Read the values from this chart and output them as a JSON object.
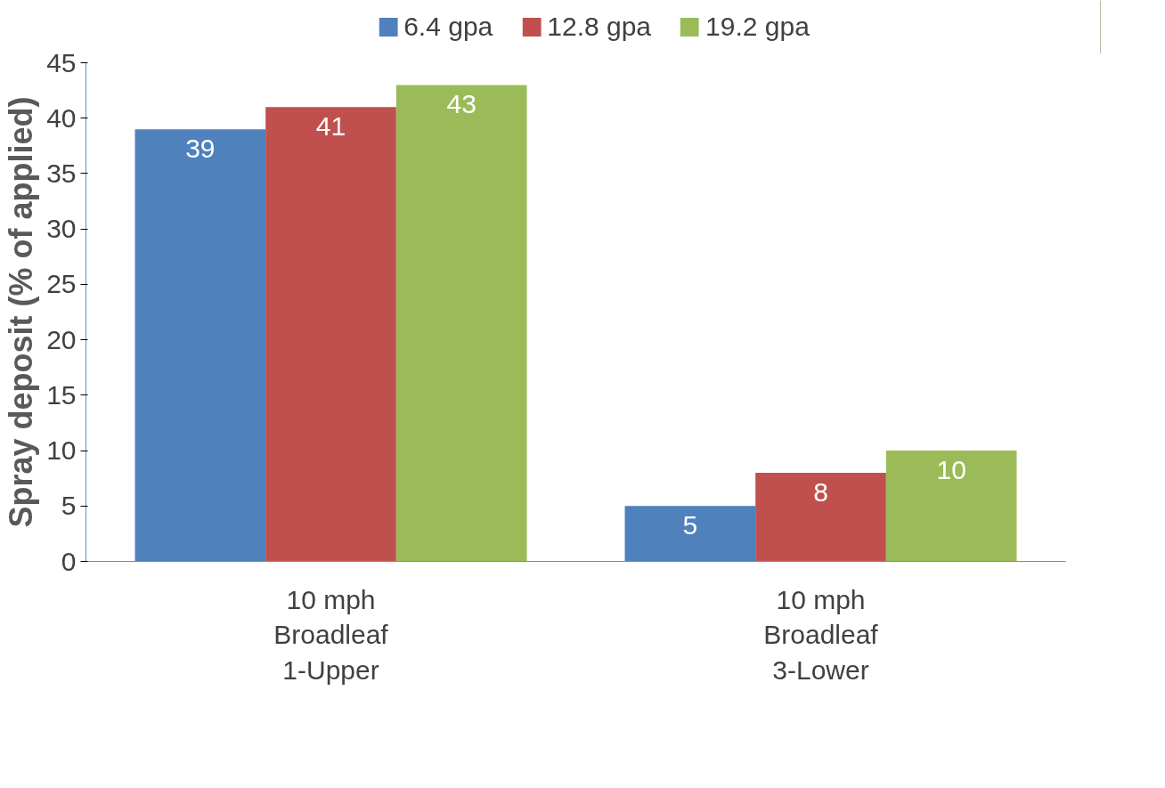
{
  "chart_data": {
    "type": "bar",
    "ylabel": "Spray deposit (% of applied)",
    "categories": [
      "10 mph\nBroadleaf\n1-Upper",
      "10 mph\nBroadleaf\n3-Lower"
    ],
    "series": [
      {
        "name": "6.4 gpa",
        "color": "#4f81bd",
        "values": [
          39,
          5
        ]
      },
      {
        "name": "12.8 gpa",
        "color": "#c0504d",
        "values": [
          41,
          8
        ]
      },
      {
        "name": "19.2 gpa",
        "color": "#9bbb59",
        "values": [
          43,
          10
        ]
      }
    ],
    "ylim": [
      0,
      45
    ],
    "yticks": [
      0,
      5,
      10,
      15,
      20,
      25,
      30,
      35,
      40,
      45
    ],
    "data_labels": true,
    "legend": "top",
    "grid": false
  }
}
